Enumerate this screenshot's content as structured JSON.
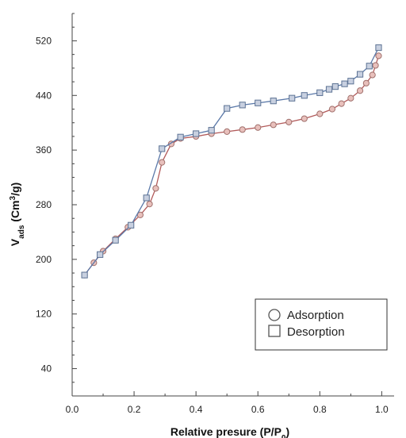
{
  "chart_data": {
    "type": "line",
    "xlabel": "Relative presure (P/P",
    "xlabel_sub": "0",
    "xlabel_tail": ")",
    "ylabel": "V",
    "ylabel_sub": "ads",
    "ylabel_mid": " (Cm",
    "ylabel_sup": "3",
    "ylabel_tail": "/g)",
    "xlim": [
      0.0,
      1.04
    ],
    "ylim": [
      0,
      560
    ],
    "x_ticks": [
      {
        "value": 0.0,
        "label": "0.0"
      },
      {
        "value": 0.2,
        "label": "0.2"
      },
      {
        "value": 0.4,
        "label": "0.4"
      },
      {
        "value": 0.6,
        "label": "0.6"
      },
      {
        "value": 0.8,
        "label": "0.8"
      },
      {
        "value": 1.0,
        "label": "1.0"
      }
    ],
    "y_ticks": [
      {
        "value": 40,
        "label": "40"
      },
      {
        "value": 120,
        "label": "120"
      },
      {
        "value": 200,
        "label": "200"
      },
      {
        "value": 280,
        "label": "280"
      },
      {
        "value": 360,
        "label": "360"
      },
      {
        "value": 440,
        "label": "440"
      },
      {
        "value": 520,
        "label": "520"
      }
    ],
    "grid": false,
    "legend_position": "bottom-right",
    "series": [
      {
        "name": "Adsorption",
        "marker": "circle",
        "line_color": "#b25a5a",
        "marker_fill": "#e8c0bc",
        "marker_stroke": "#a0706c",
        "x": [
          0.04,
          0.07,
          0.1,
          0.14,
          0.18,
          0.22,
          0.25,
          0.27,
          0.29,
          0.32,
          0.35,
          0.4,
          0.45,
          0.5,
          0.55,
          0.6,
          0.65,
          0.7,
          0.75,
          0.8,
          0.84,
          0.87,
          0.9,
          0.93,
          0.95,
          0.97,
          0.98,
          0.99
        ],
        "y": [
          177,
          195,
          212,
          230,
          247,
          265,
          281,
          304,
          342,
          369,
          377,
          380,
          384,
          387,
          390,
          393,
          397,
          401,
          406,
          413,
          420,
          428,
          436,
          447,
          458,
          470,
          484,
          498
        ]
      },
      {
        "name": "Desorption",
        "marker": "square",
        "line_color": "#5a78a8",
        "marker_fill": "#c8d0e0",
        "marker_stroke": "#5d7394",
        "x": [
          0.04,
          0.09,
          0.14,
          0.19,
          0.24,
          0.29,
          0.35,
          0.4,
          0.45,
          0.5,
          0.55,
          0.6,
          0.65,
          0.71,
          0.75,
          0.8,
          0.83,
          0.85,
          0.88,
          0.9,
          0.93,
          0.96,
          0.99
        ],
        "y": [
          177,
          207,
          228,
          250,
          290,
          362,
          379,
          384,
          389,
          421,
          426,
          429,
          432,
          436,
          440,
          444,
          449,
          453,
          457,
          461,
          471,
          483,
          510
        ]
      }
    ]
  }
}
